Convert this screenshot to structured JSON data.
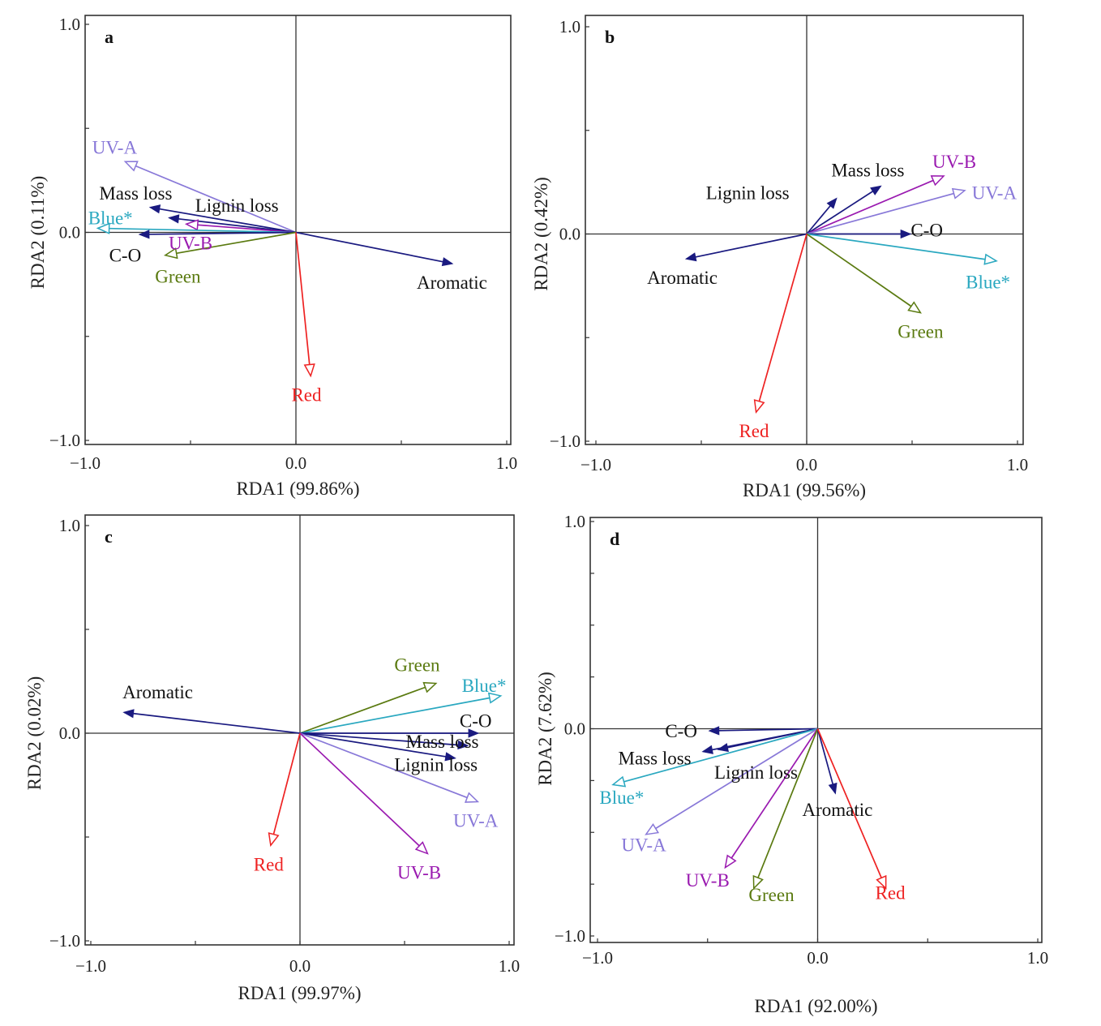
{
  "figure": {
    "colors": {
      "Aromatic": "#1a1a80",
      "Mass loss": "#1a1a80",
      "Lignin loss": "#1a1a80",
      "C-O": "#1a1a80",
      "UV-A": "#8878d8",
      "UV-B": "#9a1ab0",
      "Blue*": "#2aa8c0",
      "Green": "#5a7a10",
      "Red": "#ee2222"
    },
    "label_colors": {
      "Aromatic": "#111111",
      "Mass loss": "#111111",
      "Lignin loss": "#111111",
      "C-O": "#111111",
      "UV-A": "#8878d8",
      "UV-B": "#9a1ab0",
      "Blue*": "#2aa8c0",
      "Green": "#5a7a10",
      "Red": "#ee2222"
    },
    "open_head": [
      "UV-A",
      "UV-B",
      "Blue*",
      "Green",
      "Red"
    ]
  },
  "chart_data": [
    {
      "type": "scatter",
      "subtype": "rda-biplot",
      "panel": "a",
      "title": "",
      "xlabel": "RDA1 (99.86%)",
      "ylabel": "RDA2 (0.11%)",
      "xlim": [
        -1.0,
        1.0
      ],
      "ylim": [
        -1.0,
        1.0
      ],
      "xticks": [
        "-1.0",
        "0.0",
        "1.0"
      ],
      "yticks": [
        "1.0",
        "0.0",
        "-1.0"
      ],
      "grid": false,
      "vectors": [
        {
          "name": "UV-A",
          "x": -0.81,
          "y": 0.34
        },
        {
          "name": "Mass loss",
          "x": -0.69,
          "y": 0.12
        },
        {
          "name": "Lignin loss",
          "x": -0.6,
          "y": 0.07
        },
        {
          "name": "UV-B",
          "x": -0.52,
          "y": 0.04
        },
        {
          "name": "Blue*",
          "x": -0.94,
          "y": 0.02
        },
        {
          "name": "C-O",
          "x": -0.74,
          "y": -0.01
        },
        {
          "name": "Green",
          "x": -0.62,
          "y": -0.11
        },
        {
          "name": "Aromatic",
          "x": 0.74,
          "y": -0.15
        },
        {
          "name": "Red",
          "x": 0.07,
          "y": -0.69
        }
      ],
      "labels": [
        {
          "name": "UV-A",
          "x": -0.86,
          "y": 0.41
        },
        {
          "name": "Mass loss",
          "x": -0.76,
          "y": 0.19
        },
        {
          "name": "Lignin loss",
          "x": -0.28,
          "y": 0.13
        },
        {
          "name": "Blue*",
          "x": -0.88,
          "y": 0.07
        },
        {
          "name": "UV-B",
          "x": -0.5,
          "y": -0.05
        },
        {
          "name": "C-O",
          "x": -0.81,
          "y": -0.11
        },
        {
          "name": "Green",
          "x": -0.56,
          "y": -0.21
        },
        {
          "name": "Aromatic",
          "x": 0.74,
          "y": -0.24
        },
        {
          "name": "Red",
          "x": 0.05,
          "y": -0.78
        }
      ]
    },
    {
      "type": "scatter",
      "subtype": "rda-biplot",
      "panel": "b",
      "title": "",
      "xlabel": "RDA1 (99.56%)",
      "ylabel": "RDA2 (0.42%)",
      "xlim": [
        -1.0,
        1.0
      ],
      "ylim": [
        -1.0,
        1.0
      ],
      "xticks": [
        "-1.0",
        "0.0",
        "1.0"
      ],
      "yticks": [
        "1.0",
        "0.0",
        "-1.0"
      ],
      "grid": false,
      "vectors": [
        {
          "name": "Lignin loss",
          "x": 0.14,
          "y": 0.17
        },
        {
          "name": "Mass loss",
          "x": 0.35,
          "y": 0.23
        },
        {
          "name": "UV-B",
          "x": 0.65,
          "y": 0.28
        },
        {
          "name": "UV-A",
          "x": 0.75,
          "y": 0.21
        },
        {
          "name": "C-O",
          "x": 0.49,
          "y": 0.0
        },
        {
          "name": "Blue*",
          "x": 0.9,
          "y": -0.13
        },
        {
          "name": "Green",
          "x": 0.54,
          "y": -0.38
        },
        {
          "name": "Aromatic",
          "x": -0.57,
          "y": -0.12
        },
        {
          "name": "Red",
          "x": -0.24,
          "y": -0.86
        }
      ],
      "labels": [
        {
          "name": "Lignin loss",
          "x": -0.28,
          "y": 0.2
        },
        {
          "name": "Mass loss",
          "x": 0.29,
          "y": 0.31
        },
        {
          "name": "UV-B",
          "x": 0.7,
          "y": 0.35
        },
        {
          "name": "UV-A",
          "x": 0.89,
          "y": 0.2
        },
        {
          "name": "C-O",
          "x": 0.57,
          "y": 0.02
        },
        {
          "name": "Blue*",
          "x": 0.86,
          "y": -0.23
        },
        {
          "name": "Green",
          "x": 0.54,
          "y": -0.47
        },
        {
          "name": "Aromatic",
          "x": -0.59,
          "y": -0.21
        },
        {
          "name": "Red",
          "x": -0.25,
          "y": -0.95
        }
      ]
    },
    {
      "type": "scatter",
      "subtype": "rda-biplot",
      "panel": "c",
      "title": "",
      "xlabel": "RDA1 (99.97%)",
      "ylabel": "RDA2 (0.02%)",
      "xlim": [
        -1.0,
        1.0
      ],
      "ylim": [
        -1.0,
        1.0
      ],
      "xticks": [
        "-1.0",
        "0.0",
        "1.0"
      ],
      "yticks": [
        "1.0",
        "0.0",
        "-1.0"
      ],
      "grid": false,
      "vectors": [
        {
          "name": "Aromatic",
          "x": -0.84,
          "y": 0.1
        },
        {
          "name": "Green",
          "x": 0.65,
          "y": 0.24
        },
        {
          "name": "Blue*",
          "x": 0.96,
          "y": 0.18
        },
        {
          "name": "C-O",
          "x": 0.85,
          "y": 0.0
        },
        {
          "name": "Mass loss",
          "x": 0.8,
          "y": -0.06
        },
        {
          "name": "Lignin loss",
          "x": 0.74,
          "y": -0.12
        },
        {
          "name": "UV-A",
          "x": 0.85,
          "y": -0.33
        },
        {
          "name": "UV-B",
          "x": 0.61,
          "y": -0.58
        },
        {
          "name": "Red",
          "x": -0.14,
          "y": -0.54
        }
      ],
      "labels": [
        {
          "name": "Aromatic",
          "x": -0.68,
          "y": 0.2
        },
        {
          "name": "Green",
          "x": 0.56,
          "y": 0.33
        },
        {
          "name": "Blue*",
          "x": 0.88,
          "y": 0.23
        },
        {
          "name": "C-O",
          "x": 0.84,
          "y": 0.06
        },
        {
          "name": "Mass loss",
          "x": 0.68,
          "y": -0.04
        },
        {
          "name": "Lignin loss",
          "x": 0.65,
          "y": -0.15
        },
        {
          "name": "UV-A",
          "x": 0.84,
          "y": -0.42
        },
        {
          "name": "UV-B",
          "x": 0.57,
          "y": -0.67
        },
        {
          "name": "Red",
          "x": -0.15,
          "y": -0.63
        }
      ]
    },
    {
      "type": "scatter",
      "subtype": "rda-biplot",
      "panel": "d",
      "title": "",
      "xlabel": "RDA1 (92.00%)",
      "ylabel": "RDA2 (7.62%)",
      "xlim": [
        -1.0,
        1.0
      ],
      "ylim": [
        -1.0,
        1.0
      ],
      "xticks": [
        "-1.0",
        "0.0",
        "1.0"
      ],
      "yticks": [
        "1.0",
        "0.0",
        "-1.0"
      ],
      "grid": false,
      "vectors": [
        {
          "name": "C-O",
          "x": -0.49,
          "y": -0.01
        },
        {
          "name": "Mass loss",
          "x": -0.52,
          "y": -0.11
        },
        {
          "name": "Lignin loss",
          "x": -0.45,
          "y": -0.1
        },
        {
          "name": "Blue*",
          "x": -0.93,
          "y": -0.27
        },
        {
          "name": "UV-A",
          "x": -0.78,
          "y": -0.51
        },
        {
          "name": "UV-B",
          "x": -0.42,
          "y": -0.67
        },
        {
          "name": "Green",
          "x": -0.29,
          "y": -0.77
        },
        {
          "name": "Aromatic",
          "x": 0.08,
          "y": -0.31
        },
        {
          "name": "Red",
          "x": 0.31,
          "y": -0.77
        }
      ],
      "labels": [
        {
          "name": "C-O",
          "x": -0.62,
          "y": -0.01
        },
        {
          "name": "Mass loss",
          "x": -0.74,
          "y": -0.14
        },
        {
          "name": "Lignin loss",
          "x": -0.28,
          "y": -0.21
        },
        {
          "name": "Blue*",
          "x": -0.89,
          "y": -0.33
        },
        {
          "name": "UV-A",
          "x": -0.79,
          "y": -0.56
        },
        {
          "name": "UV-B",
          "x": -0.5,
          "y": -0.73
        },
        {
          "name": "Green",
          "x": -0.21,
          "y": -0.8
        },
        {
          "name": "Aromatic",
          "x": 0.09,
          "y": -0.39
        },
        {
          "name": "Red",
          "x": 0.33,
          "y": -0.79
        }
      ]
    }
  ]
}
